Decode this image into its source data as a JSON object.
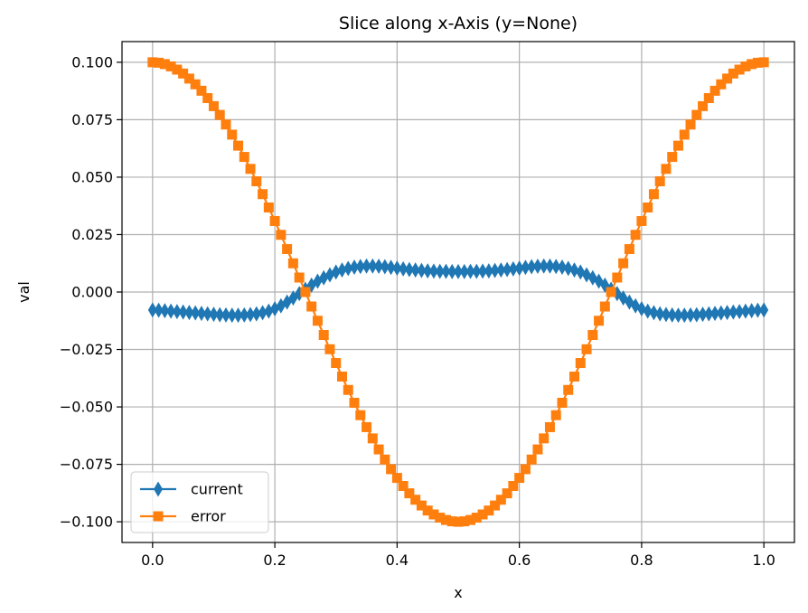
{
  "chart_data": {
    "type": "line",
    "title": "Slice along x-Axis (y=None)",
    "xlabel": "x",
    "ylabel": "val",
    "xlim": [
      -0.05,
      1.05
    ],
    "ylim": [
      -0.109,
      0.109
    ],
    "xticks": [
      0.0,
      0.2,
      0.4,
      0.6,
      0.8,
      1.0
    ],
    "xtick_labels": [
      "0.0",
      "0.2",
      "0.4",
      "0.6",
      "0.8",
      "1.0"
    ],
    "yticks": [
      -0.1,
      -0.075,
      -0.05,
      -0.025,
      0.0,
      0.025,
      0.05,
      0.075,
      0.1
    ],
    "ytick_labels": [
      "−0.100",
      "−0.075",
      "−0.050",
      "−0.025",
      "0.000",
      "0.025",
      "0.050",
      "0.075",
      "0.100"
    ],
    "grid": true,
    "legend_position": "lower-left",
    "x": [
      0.0,
      0.01,
      0.02,
      0.03,
      0.04,
      0.05,
      0.06,
      0.07,
      0.08,
      0.09,
      0.1,
      0.11,
      0.12,
      0.13,
      0.14,
      0.15,
      0.16,
      0.17,
      0.18,
      0.19,
      0.2,
      0.21,
      0.22,
      0.23,
      0.24,
      0.25,
      0.26,
      0.27,
      0.28,
      0.29,
      0.3,
      0.31,
      0.32,
      0.33,
      0.34,
      0.35,
      0.36,
      0.37,
      0.38,
      0.39,
      0.4,
      0.41,
      0.42,
      0.43,
      0.44,
      0.45,
      0.46,
      0.47,
      0.48,
      0.49,
      0.5,
      0.51,
      0.52,
      0.53,
      0.54,
      0.55,
      0.56,
      0.57,
      0.58,
      0.59,
      0.6,
      0.61,
      0.62,
      0.63,
      0.64,
      0.65,
      0.66,
      0.67,
      0.68,
      0.69,
      0.7,
      0.71,
      0.72,
      0.73,
      0.74,
      0.75,
      0.76,
      0.77,
      0.78,
      0.79,
      0.8,
      0.81,
      0.82,
      0.83,
      0.84,
      0.85,
      0.86,
      0.87,
      0.88,
      0.89,
      0.9,
      0.91,
      0.92,
      0.93,
      0.94,
      0.95,
      0.96,
      0.97,
      0.98,
      0.99,
      1.0
    ],
    "series": [
      {
        "name": "current",
        "color": "#1f77b4",
        "marker": "thin-diamond",
        "values": [
          -0.0078,
          -0.0079,
          -0.0081,
          -0.0083,
          -0.0085,
          -0.0087,
          -0.0089,
          -0.0091,
          -0.0093,
          -0.0095,
          -0.0097,
          -0.0099,
          -0.01,
          -0.0101,
          -0.0101,
          -0.01,
          -0.0098,
          -0.0095,
          -0.009,
          -0.0083,
          -0.0073,
          -0.006,
          -0.0044,
          -0.0026,
          -0.0007,
          0.0012,
          0.003,
          0.0047,
          0.0062,
          0.0075,
          0.0087,
          0.0096,
          0.0103,
          0.0108,
          0.0111,
          0.0113,
          0.0113,
          0.0112,
          0.011,
          0.0107,
          0.0104,
          0.0101,
          0.0098,
          0.0096,
          0.0094,
          0.0092,
          0.0091,
          0.009,
          0.009,
          0.0089,
          0.0089,
          0.0089,
          0.009,
          0.009,
          0.0091,
          0.0092,
          0.0094,
          0.0096,
          0.0098,
          0.0101,
          0.0104,
          0.0107,
          0.011,
          0.0112,
          0.0113,
          0.0113,
          0.0111,
          0.0108,
          0.0103,
          0.0096,
          0.0087,
          0.0075,
          0.0062,
          0.0047,
          0.003,
          0.0012,
          -0.0007,
          -0.0026,
          -0.0044,
          -0.006,
          -0.0073,
          -0.0083,
          -0.009,
          -0.0095,
          -0.0098,
          -0.01,
          -0.0101,
          -0.0101,
          -0.01,
          -0.0099,
          -0.0097,
          -0.0095,
          -0.0093,
          -0.0091,
          -0.0089,
          -0.0087,
          -0.0085,
          -0.0083,
          -0.0081,
          -0.0079,
          -0.0078
        ]
      },
      {
        "name": "error",
        "color": "#ff7f0e",
        "marker": "square",
        "values": [
          0.1,
          0.0998,
          0.0992,
          0.0982,
          0.0968,
          0.0951,
          0.0929,
          0.0904,
          0.0876,
          0.0844,
          0.0809,
          0.0771,
          0.0729,
          0.0685,
          0.0637,
          0.0588,
          0.0536,
          0.0482,
          0.0426,
          0.0368,
          0.0309,
          0.0249,
          0.0187,
          0.0125,
          0.0063,
          0.0,
          -0.0063,
          -0.0125,
          -0.0187,
          -0.0249,
          -0.0309,
          -0.0368,
          -0.0426,
          -0.0482,
          -0.0536,
          -0.0588,
          -0.0637,
          -0.0685,
          -0.0729,
          -0.0771,
          -0.0809,
          -0.0844,
          -0.0876,
          -0.0904,
          -0.0929,
          -0.0951,
          -0.0968,
          -0.0982,
          -0.0992,
          -0.0998,
          -0.1,
          -0.0998,
          -0.0992,
          -0.0982,
          -0.0968,
          -0.0951,
          -0.0929,
          -0.0904,
          -0.0876,
          -0.0844,
          -0.0809,
          -0.0771,
          -0.0729,
          -0.0685,
          -0.0637,
          -0.0588,
          -0.0536,
          -0.0482,
          -0.0426,
          -0.0368,
          -0.0309,
          -0.0249,
          -0.0187,
          -0.0125,
          -0.0063,
          0.0,
          0.0063,
          0.0125,
          0.0187,
          0.0249,
          0.0309,
          0.0368,
          0.0426,
          0.0482,
          0.0536,
          0.0588,
          0.0637,
          0.0685,
          0.0729,
          0.0771,
          0.0809,
          0.0844,
          0.0876,
          0.0904,
          0.0929,
          0.0951,
          0.0968,
          0.0982,
          0.0992,
          0.0998,
          0.1
        ]
      }
    ]
  }
}
